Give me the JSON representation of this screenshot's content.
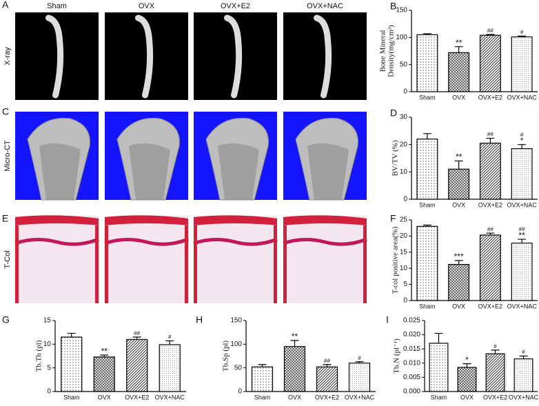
{
  "figure": {
    "panels": [
      "A",
      "C",
      "E"
    ],
    "headers": [
      "Sham",
      "OVX",
      "OVX+E2",
      "OVX+NAC"
    ],
    "row_labels": [
      "X-ray",
      "Micro-CT",
      "T-Col"
    ]
  },
  "chart_data": [
    {
      "type": "bar",
      "panel": "B",
      "ylabel": [
        "Bone Mineral",
        "Density(mg/cm³)"
      ],
      "categories": [
        "Sham",
        "OVX",
        "OVX+E2",
        "OVX+NAC"
      ],
      "values": [
        105,
        72,
        104,
        101
      ],
      "errors": [
        2,
        11,
        1.5,
        1.5
      ],
      "annotations": [
        [],
        [
          "**"
        ],
        [
          "##"
        ],
        [
          "#"
        ]
      ],
      "ylim": [
        0,
        150
      ],
      "yticks": [
        0,
        50,
        100,
        150
      ]
    },
    {
      "type": "bar",
      "panel": "D",
      "ylabel": [
        "BV/TV (%)"
      ],
      "categories": [
        "Sham",
        "OVX",
        "OVX+E2",
        "OVX+NAC"
      ],
      "values": [
        22,
        11,
        20.5,
        18.5
      ],
      "errors": [
        2,
        3,
        1.8,
        1.5
      ],
      "annotations": [
        [],
        [
          "**"
        ],
        [
          "##"
        ],
        [
          "#",
          "*"
        ]
      ],
      "ylim": [
        0,
        30
      ],
      "yticks": [
        0,
        10,
        20,
        30
      ]
    },
    {
      "type": "bar",
      "panel": "F",
      "ylabel": [
        "T-col positive area(%)"
      ],
      "categories": [
        "Sham",
        "OVX",
        "OVX+E2",
        "OVX+NAC"
      ],
      "values": [
        23,
        11.2,
        20.3,
        17.8
      ],
      "errors": [
        0.4,
        1.2,
        0.6,
        1.2
      ],
      "annotations": [
        [],
        [
          "***"
        ],
        [
          "##"
        ],
        [
          "##",
          "**"
        ]
      ],
      "ylim": [
        0,
        25
      ],
      "yticks": [
        0,
        5,
        10,
        15,
        20,
        25
      ]
    },
    {
      "type": "bar",
      "panel": "G",
      "ylabel": [
        "Tb.Th (pl)"
      ],
      "categories": [
        "Sham",
        "OVX",
        "OVX+E2",
        "OVX+NAC"
      ],
      "values": [
        11.5,
        7.3,
        11,
        9.9
      ],
      "errors": [
        0.8,
        0.4,
        0.5,
        0.8
      ],
      "annotations": [
        [],
        [
          "**"
        ],
        [
          "##"
        ],
        [
          "#"
        ]
      ],
      "ylim": [
        0,
        15
      ],
      "yticks": [
        0,
        5,
        10,
        15
      ]
    },
    {
      "type": "bar",
      "panel": "H",
      "ylabel": [
        "Tb.Sp (pl)"
      ],
      "categories": [
        "Sham",
        "OVX",
        "OVX+E2",
        "OVX+NAC"
      ],
      "values": [
        52,
        95,
        52,
        60
      ],
      "errors": [
        5,
        13,
        5,
        3
      ],
      "annotations": [
        [],
        [
          "**"
        ],
        [
          "##"
        ],
        [
          "#"
        ]
      ],
      "ylim": [
        0,
        150
      ],
      "yticks": [
        0,
        50,
        100,
        150
      ]
    },
    {
      "type": "bar",
      "panel": "I",
      "ylabel": [
        "Tb.N (pl⁻¹)"
      ],
      "categories": [
        "Sham",
        "OVX",
        "OVX+E2",
        "OVX+NAC"
      ],
      "values": [
        0.017,
        0.0085,
        0.0133,
        0.0115
      ],
      "errors": [
        0.0035,
        0.0013,
        0.0013,
        0.001
      ],
      "annotations": [
        [],
        [
          "*"
        ],
        [
          "#"
        ],
        [
          "#"
        ]
      ],
      "ylim": [
        0,
        0.025
      ],
      "yticks": [
        {
          "value": 0,
          "label": "0.000"
        },
        {
          "value": 0.005,
          "label": "0.005"
        },
        {
          "value": 0.01,
          "label": "0.010"
        },
        {
          "value": 0.015,
          "label": "0.015"
        },
        {
          "value": 0.02,
          "label": "0.020"
        },
        {
          "value": 0.025,
          "label": "0.025"
        }
      ]
    }
  ]
}
